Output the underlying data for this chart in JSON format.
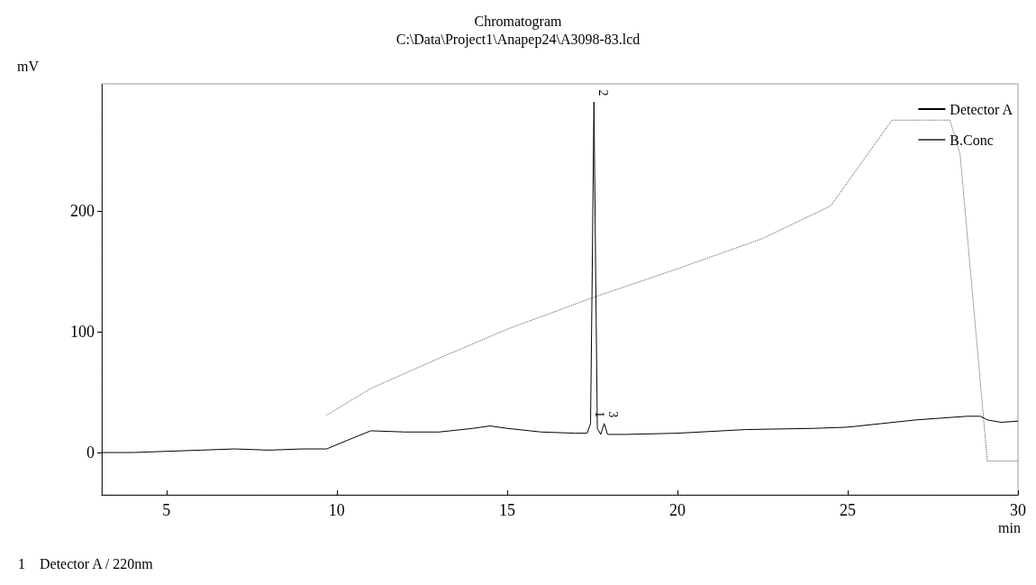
{
  "chart_data": {
    "type": "line",
    "title": "Chromatogram",
    "subtitle": "C:\\Data\\Project1\\Anapep24\\A3098-83.lcd",
    "xlabel": "min",
    "ylabel": "mV",
    "xlim": [
      3.1,
      30
    ],
    "xticks": [
      5,
      10,
      15,
      20,
      25,
      30
    ],
    "ylim": [
      -35,
      305
    ],
    "yticks": [
      0,
      100,
      200
    ],
    "grid": false,
    "legend": "top right",
    "marker": "none",
    "series": [
      {
        "name": "Detector A",
        "color": "#000000",
        "line_style": "solid",
        "x": [
          3.1,
          4,
          5,
          6,
          7,
          8,
          9,
          9.7,
          10.3,
          11,
          12,
          13,
          14,
          14.5,
          15,
          16,
          17,
          17.35,
          17.45,
          17.5,
          17.55,
          17.6,
          17.65,
          17.75,
          17.85,
          17.95,
          18.5,
          20,
          22,
          24,
          25,
          26,
          27,
          28.5,
          28.9,
          29.1,
          29.5,
          30
        ],
        "values": [
          0,
          0,
          1,
          2,
          3,
          2,
          3,
          3,
          10,
          18,
          17,
          17,
          20,
          22,
          20,
          17,
          16,
          16,
          24,
          150,
          290,
          150,
          20,
          15,
          24,
          15,
          15,
          16,
          19,
          20,
          21,
          24,
          27,
          30,
          30,
          27,
          25,
          26
        ]
      },
      {
        "name": "B.Conc",
        "color": "#555555",
        "line_style": "dotted",
        "x": [
          9.7,
          11,
          13,
          15,
          17.5,
          20,
          22.5,
          24.5,
          26.3,
          28,
          28.3,
          29.1,
          30
        ],
        "values": [
          31,
          53,
          78,
          102,
          128,
          152,
          177,
          204,
          275,
          275,
          247,
          -7,
          -7
        ]
      }
    ],
    "annotations": [
      {
        "text": "2",
        "x": 17.55,
        "y": 290
      },
      {
        "text": "1",
        "x": 17.45,
        "y": 24
      },
      {
        "text": "3",
        "x": 17.85,
        "y": 24
      },
      "1    Detector A / 220nm"
    ]
  }
}
